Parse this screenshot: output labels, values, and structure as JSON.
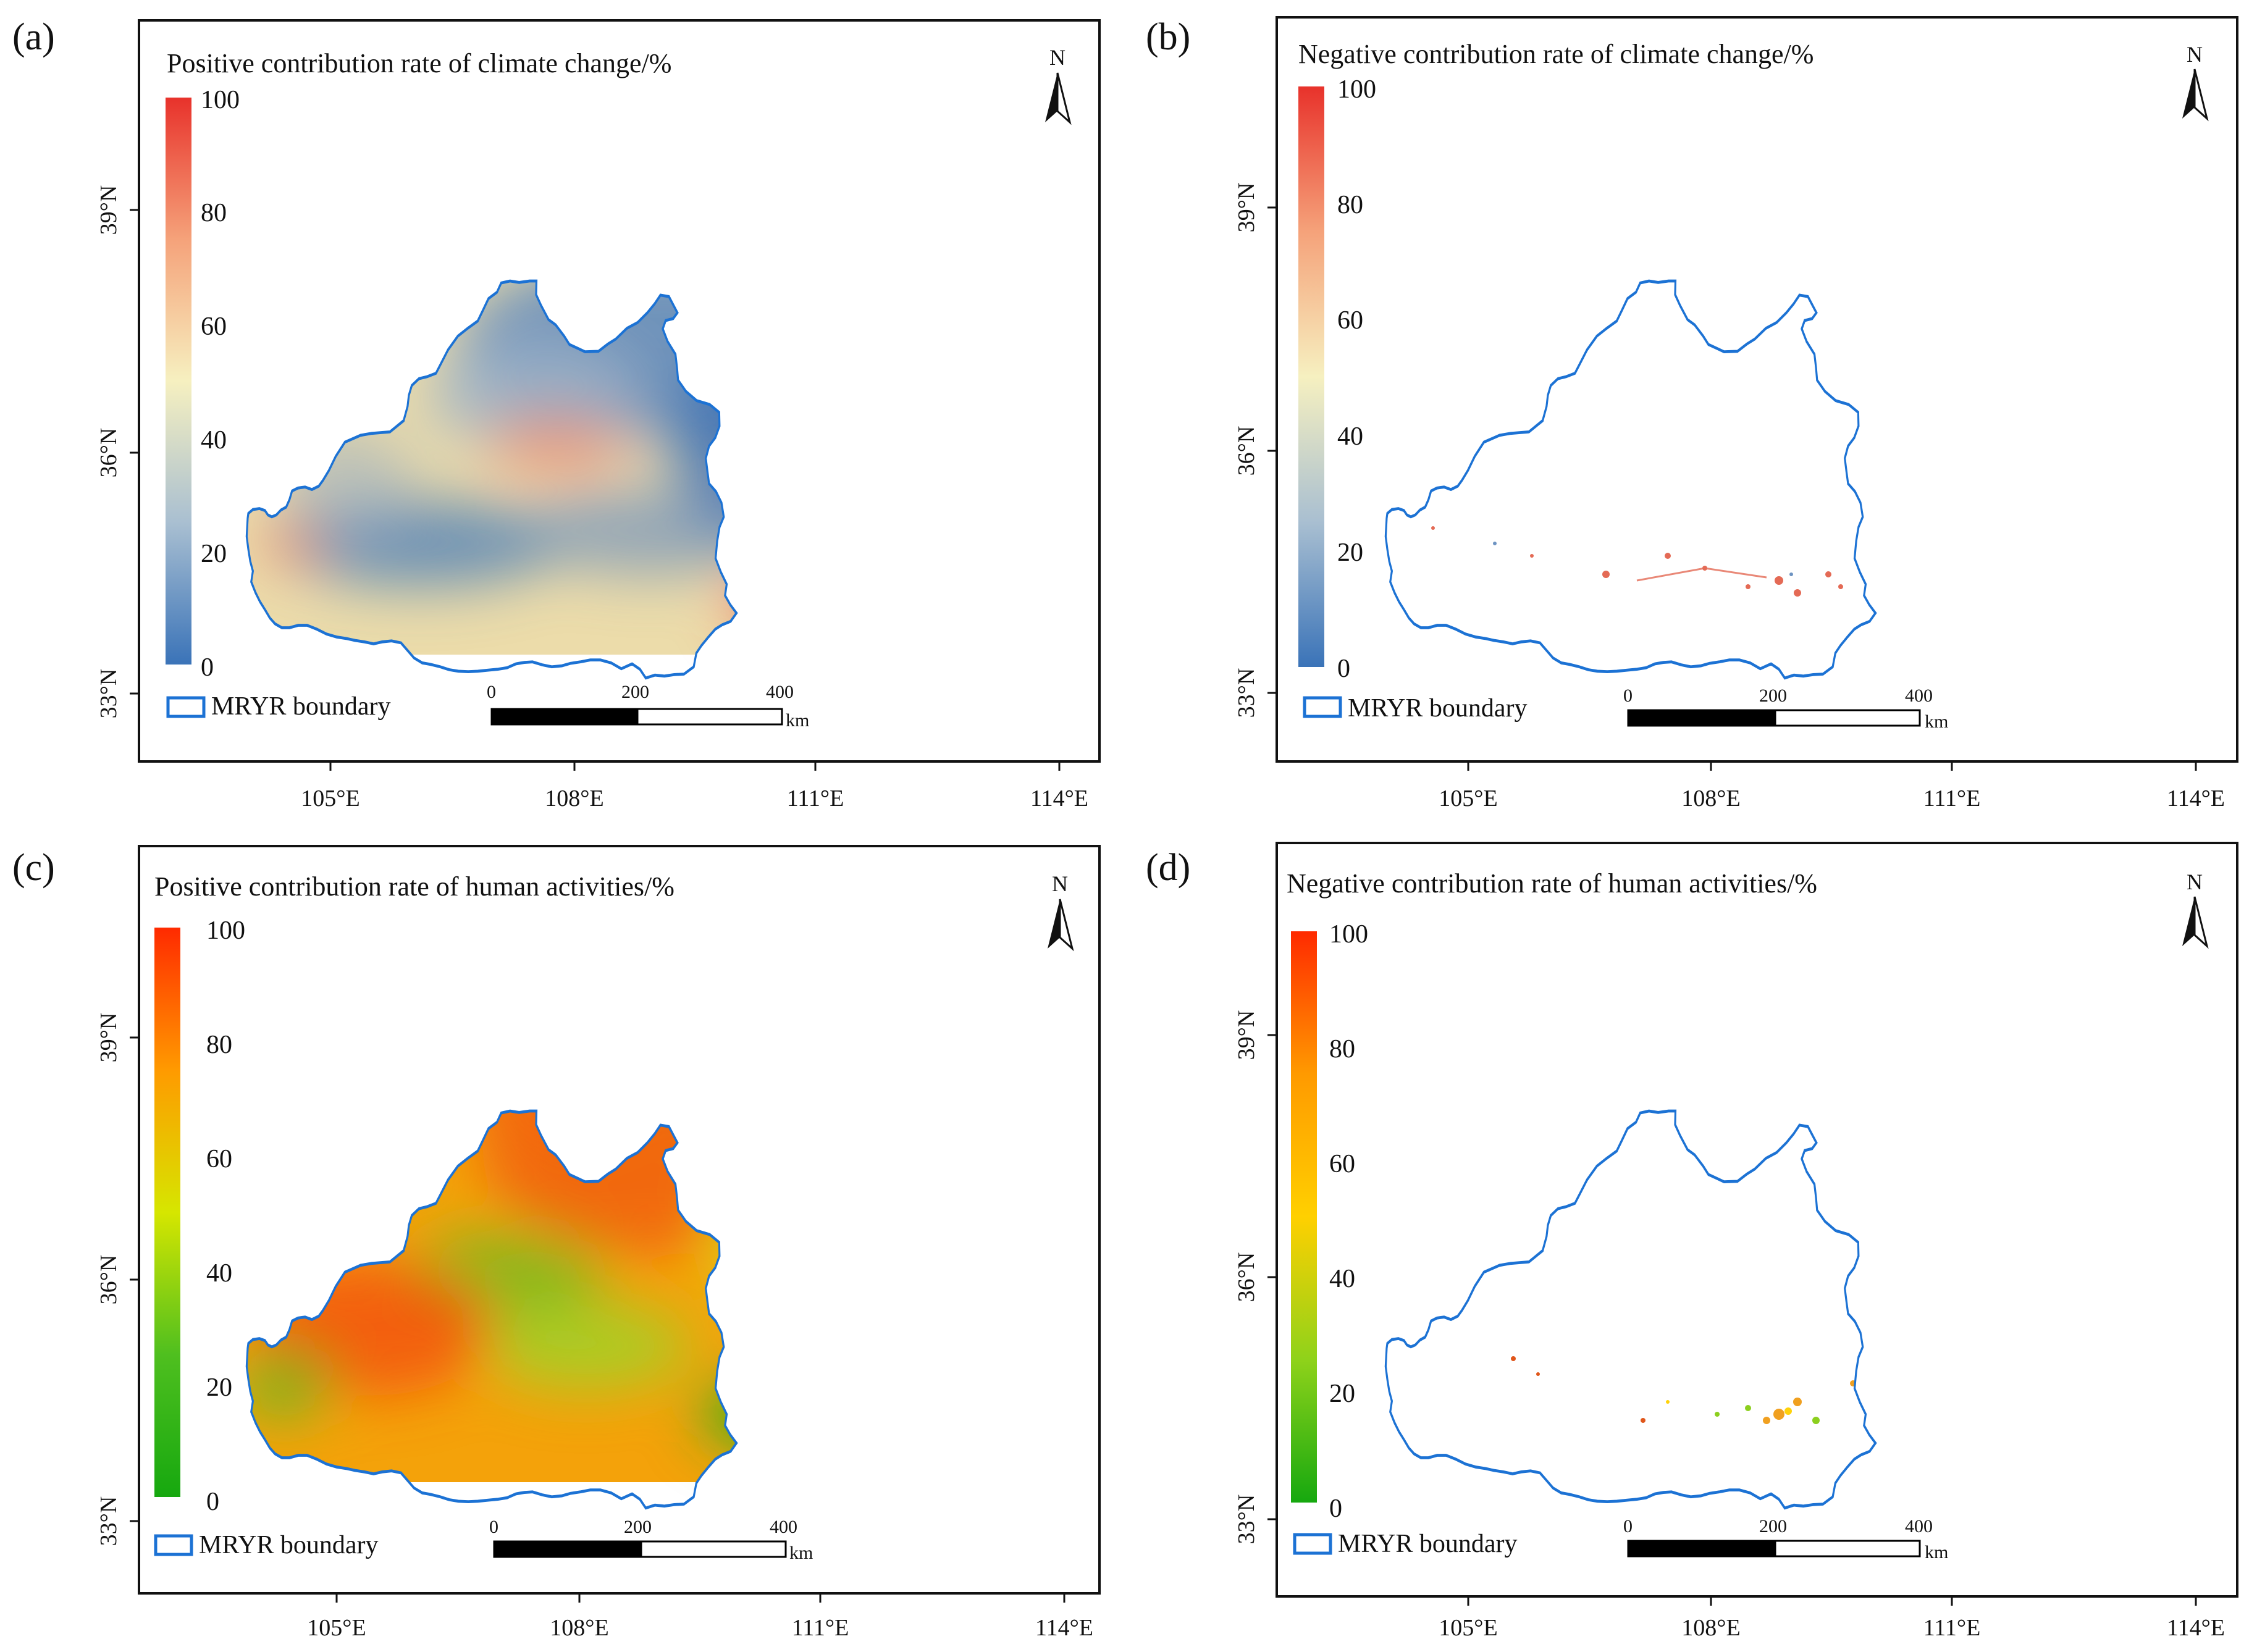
{
  "panels": [
    {
      "letter": "(a)",
      "title": "Positive contribution rate of climate change/%",
      "legend_label": "MRYR boundary",
      "colorbar": {
        "ticks": [
          "100",
          "80",
          "60",
          "40",
          "20",
          "0"
        ],
        "stops": [
          "#e8322b",
          "#f5a27a",
          "#f6f0c0",
          "#a9bfd1",
          "#3a73b8"
        ]
      },
      "fill_palette": "climate",
      "coverage": "full"
    },
    {
      "letter": "(b)",
      "title": "Negative contribution rate of climate change/%",
      "legend_label": "MRYR boundary",
      "colorbar": {
        "ticks": [
          "100",
          "80",
          "60",
          "40",
          "20",
          "0"
        ],
        "stops": [
          "#e8322b",
          "#f5a27a",
          "#f6f0c0",
          "#a9bfd1",
          "#3a73b8"
        ]
      },
      "fill_palette": "climate",
      "coverage": "sparse"
    },
    {
      "letter": "(c)",
      "title": "Positive contribution rate of human activities/%",
      "legend_label": "MRYR boundary",
      "colorbar": {
        "ticks": [
          "100",
          "80",
          "60",
          "40",
          "20",
          "0"
        ],
        "stops": [
          "#ff2a00",
          "#ff9a00",
          "#d6e600",
          "#4fbf1f",
          "#16a80f"
        ]
      },
      "fill_palette": "human",
      "coverage": "full"
    },
    {
      "letter": "(d)",
      "title": "Negative contribution rate of human activities/%",
      "legend_label": "MRYR boundary",
      "colorbar": {
        "ticks": [
          "100",
          "80",
          "60",
          "40",
          "20",
          "0"
        ],
        "stops": [
          "#ff2a00",
          "#ff9a00",
          "#ffd000",
          "#8fd21a",
          "#16a80f"
        ]
      },
      "fill_palette": "human",
      "coverage": "sparse"
    }
  ],
  "axes": {
    "lon_ticks": [
      "105°E",
      "108°E",
      "111°E",
      "114°E"
    ],
    "lat_ticks": [
      "39°N",
      "36°N",
      "33°N"
    ]
  },
  "scale_bar": {
    "labels": [
      "0",
      "200",
      "400"
    ],
    "unit": "km"
  },
  "north_arrow": "N",
  "colors": {
    "boundary": "#1c72d4",
    "frame": "#111111"
  }
}
